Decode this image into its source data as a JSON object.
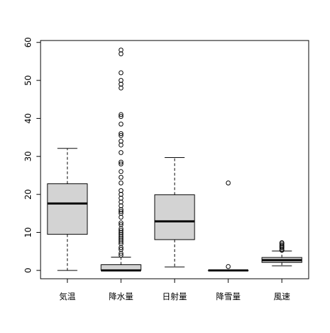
{
  "chart_data": {
    "type": "box",
    "title": "",
    "xlabel": "",
    "ylabel": "",
    "ylim": [
      -2.2,
      60.5
    ],
    "yticks": [
      0,
      10,
      20,
      30,
      40,
      50,
      60
    ],
    "grid": false,
    "box_fill": "#d3d3d3",
    "categories": [
      "気温",
      "降水量",
      "日射量",
      "降雪量",
      "風速"
    ],
    "boxes": [
      {
        "category": "気温",
        "min": 0,
        "q1": 9.5,
        "median": 17.6,
        "q3": 22.8,
        "max": 32.1,
        "outliers": []
      },
      {
        "category": "降水量",
        "min": 0,
        "q1": 0,
        "median": 0,
        "q3": 1.5,
        "max": 3.5,
        "outliers": [
          4,
          4.5,
          5.5,
          6,
          7,
          7.5,
          8,
          8.5,
          9,
          9.5,
          10,
          10.5,
          11,
          12,
          12.5,
          14,
          15,
          15.5,
          16,
          17,
          18,
          19,
          20,
          21,
          23,
          24.5,
          26,
          28,
          28.5,
          31,
          33,
          34,
          35.5,
          36,
          38.5,
          40.5,
          41,
          48,
          49,
          50,
          52,
          57,
          58
        ]
      },
      {
        "category": "日射量",
        "min": 0.9,
        "q1": 8.1,
        "median": 12.9,
        "q3": 19.9,
        "max": 29.7,
        "outliers": []
      },
      {
        "category": "降雪量",
        "min": 0,
        "q1": 0,
        "median": 0,
        "q3": 0,
        "max": 0,
        "outliers": [
          1,
          23
        ]
      },
      {
        "category": "風速",
        "min": 1.2,
        "q1": 2.1,
        "median": 2.7,
        "q3": 3.4,
        "max": 5.1,
        "outliers": [
          5.3,
          5.6,
          6,
          6.3,
          6.6,
          7,
          7.3
        ]
      }
    ]
  }
}
